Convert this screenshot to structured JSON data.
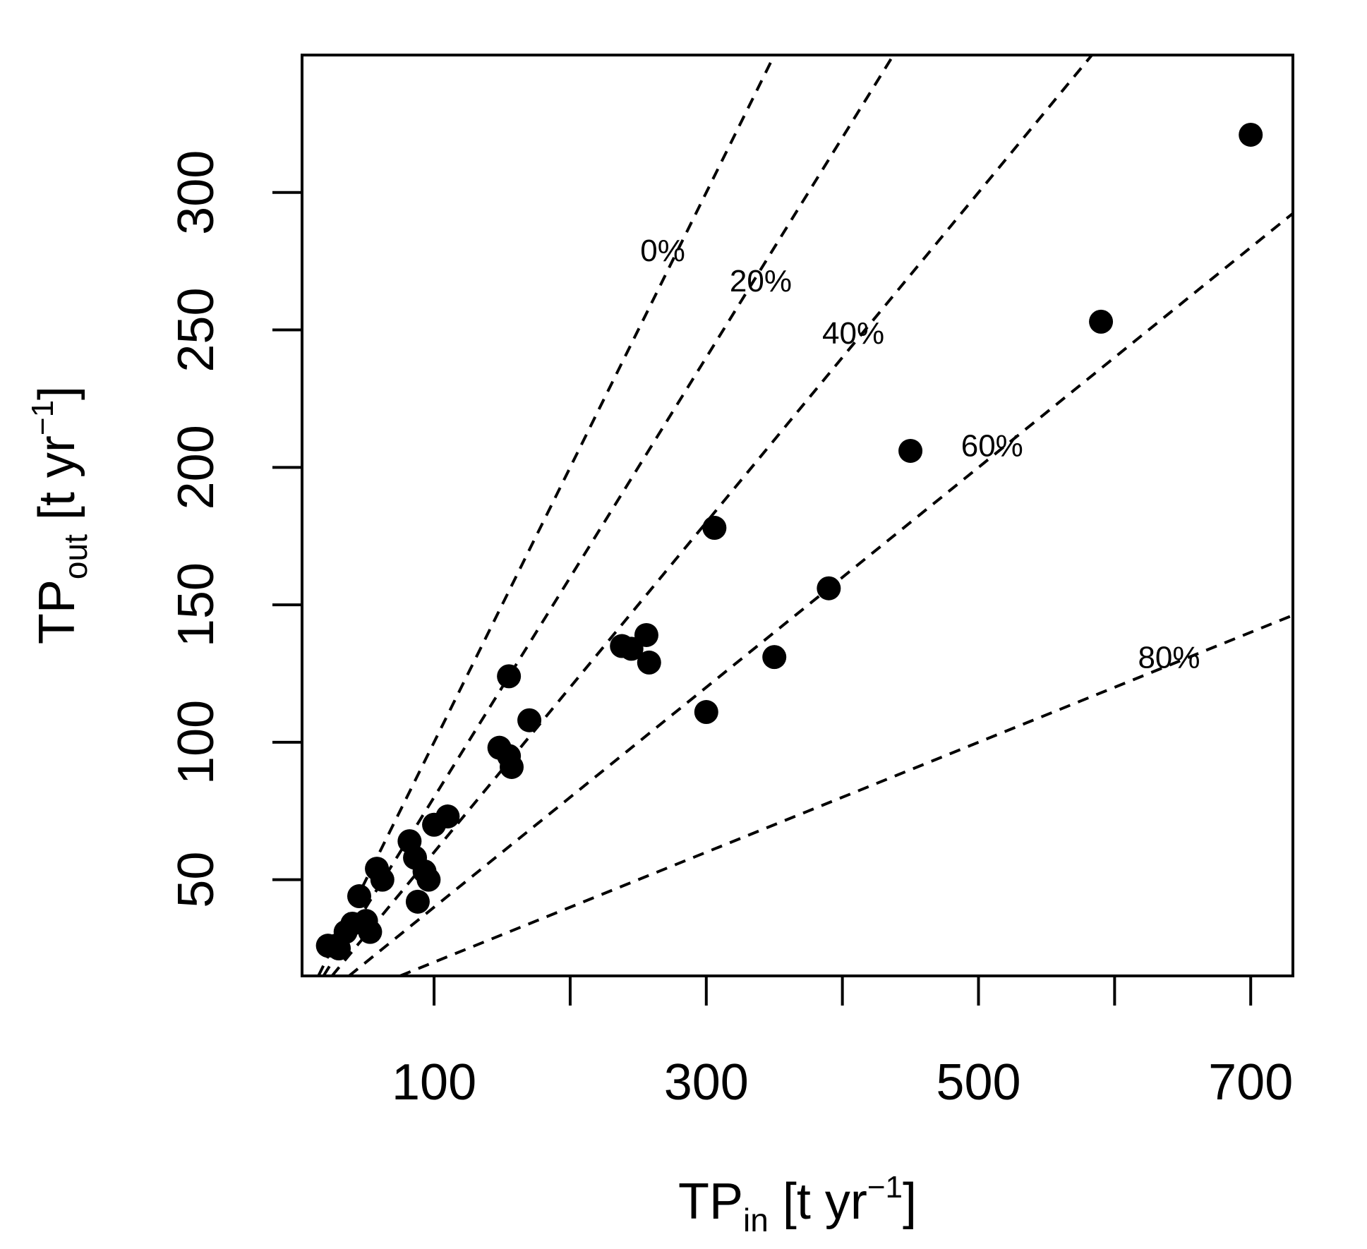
{
  "chart_data": {
    "type": "scatter",
    "title": "",
    "xlabel": {
      "main": "TP",
      "sub": "in",
      "bracket_open": " [t yr",
      "sup": "−1",
      "bracket_close": "]"
    },
    "ylabel": {
      "main": "TP",
      "sub": "out",
      "bracket_open": " [t yr",
      "sup": "−1",
      "bracket_close": "]"
    },
    "xlim": [
      3,
      731
    ],
    "ylim": [
      15,
      350
    ],
    "x_ticks": [
      100,
      200,
      300,
      400,
      500,
      600,
      700
    ],
    "x_tick_labels": [
      "100",
      "300",
      "500",
      "700"
    ],
    "x_tick_label_values": [
      100,
      300,
      500,
      700
    ],
    "y_ticks": [
      50,
      100,
      150,
      200,
      250,
      300
    ],
    "y_tick_labels": [
      "50",
      "100",
      "150",
      "200",
      "250",
      "300"
    ],
    "grid": false,
    "retention_curves": [
      {
        "label": "0%",
        "fraction_retained": 0.0,
        "label_x": 268,
        "label_y": 275
      },
      {
        "label": "20%",
        "fraction_retained": 0.2,
        "label_x": 340,
        "label_y": 264
      },
      {
        "label": "40%",
        "fraction_retained": 0.4,
        "label_x": 408,
        "label_y": 245
      },
      {
        "label": "60%",
        "fraction_retained": 0.6,
        "label_x": 510,
        "label_y": 204
      },
      {
        "label": "80%",
        "fraction_retained": 0.8,
        "label_x": 640,
        "label_y": 127
      }
    ],
    "points": [
      {
        "x": 22,
        "y": 26
      },
      {
        "x": 28,
        "y": 26
      },
      {
        "x": 30,
        "y": 25
      },
      {
        "x": 35,
        "y": 31
      },
      {
        "x": 40,
        "y": 34
      },
      {
        "x": 45,
        "y": 44
      },
      {
        "x": 50,
        "y": 35
      },
      {
        "x": 53,
        "y": 31
      },
      {
        "x": 58,
        "y": 54
      },
      {
        "x": 62,
        "y": 50
      },
      {
        "x": 82,
        "y": 64
      },
      {
        "x": 86,
        "y": 58
      },
      {
        "x": 88,
        "y": 42
      },
      {
        "x": 93,
        "y": 53
      },
      {
        "x": 96,
        "y": 50
      },
      {
        "x": 100,
        "y": 70
      },
      {
        "x": 110,
        "y": 73
      },
      {
        "x": 148,
        "y": 98
      },
      {
        "x": 155,
        "y": 95
      },
      {
        "x": 157,
        "y": 91
      },
      {
        "x": 155,
        "y": 124
      },
      {
        "x": 170,
        "y": 108
      },
      {
        "x": 238,
        "y": 135
      },
      {
        "x": 245,
        "y": 134
      },
      {
        "x": 256,
        "y": 139
      },
      {
        "x": 258,
        "y": 129
      },
      {
        "x": 300,
        "y": 111
      },
      {
        "x": 306,
        "y": 178
      },
      {
        "x": 350,
        "y": 131
      },
      {
        "x": 390,
        "y": 156
      },
      {
        "x": 450,
        "y": 206
      },
      {
        "x": 590,
        "y": 253
      },
      {
        "x": 700,
        "y": 321
      }
    ]
  }
}
